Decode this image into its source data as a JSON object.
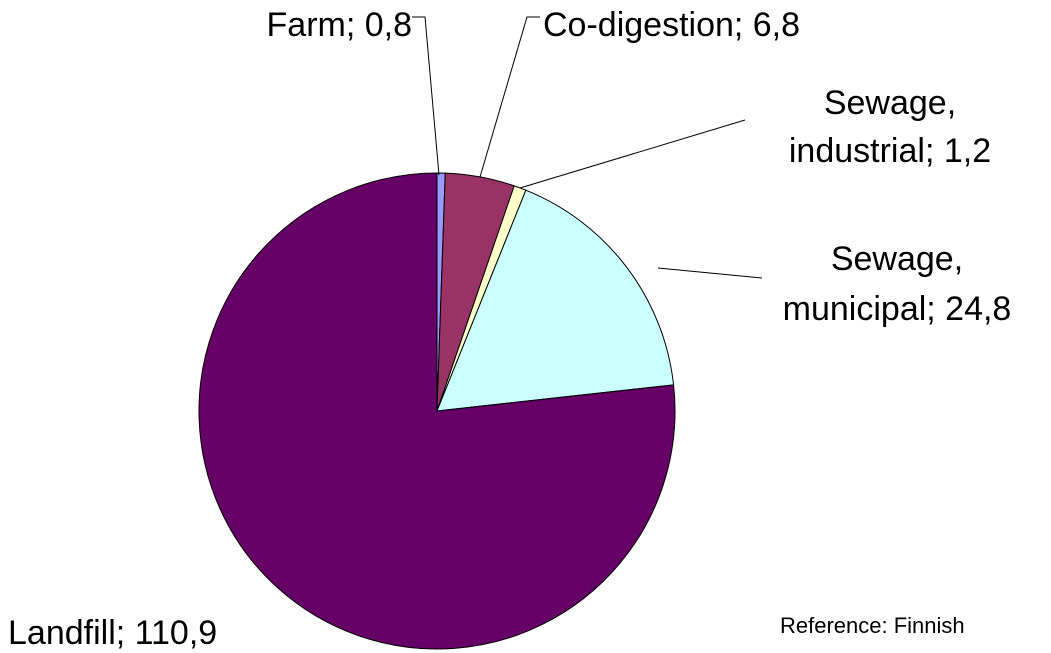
{
  "chart_data": {
    "type": "pie",
    "values": [
      0.8,
      6.8,
      1.2,
      24.8,
      110.9
    ],
    "value_labels": [
      [
        "Farm; 0,8"
      ],
      [
        "Co-digestion; 6,8"
      ],
      [
        "Sewage,",
        "industrial; 1,2"
      ],
      [
        "Sewage,",
        "municipal; 24,8"
      ],
      [
        "Landfill; 110,9"
      ]
    ],
    "colors": [
      "#9999ff",
      "#993366",
      "#ffffcc",
      "#ccffff",
      "#660066"
    ],
    "note": "Reference: Finnish"
  }
}
